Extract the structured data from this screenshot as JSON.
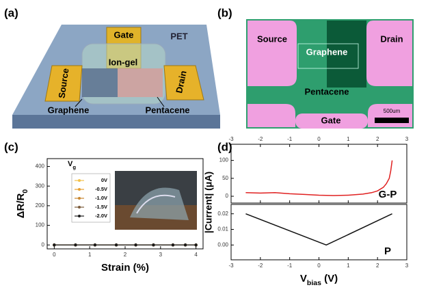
{
  "panel_labels": [
    "(a)",
    "(b)",
    "(c)",
    "(d)"
  ],
  "panel_a": {
    "gate": "Gate",
    "pet": "PET",
    "ion_gel": "Ion-gel",
    "source": "Source",
    "drain": "Drain",
    "graphene": "Graphene",
    "pentacene": "Pentacene"
  },
  "panel_b": {
    "source": "Source",
    "drain": "Drain",
    "graphene": "Graphene",
    "pentacene": "Pentacene",
    "gate": "Gate",
    "scale_bar": "500um"
  },
  "chart_data": [
    {
      "type": "line",
      "ylabel": {
        "main": "ΔR/R",
        "sub": "0"
      },
      "xlabel": "Strain (%)",
      "legend_title": {
        "main": "V",
        "sub": "g"
      },
      "x": [
        0,
        0.6,
        1.15,
        1.75,
        2.3,
        2.8,
        3.35,
        3.7,
        4
      ],
      "series": [
        {
          "name": "0V",
          "color": "#f2c24a",
          "values": [
            0,
            0,
            0,
            0,
            0,
            0,
            0,
            0,
            0
          ]
        },
        {
          "name": "-0.5V",
          "color": "#e8a030",
          "values": [
            0,
            0,
            0,
            0,
            0,
            0,
            0,
            0,
            0
          ]
        },
        {
          "name": "-1.0V",
          "color": "#c8862e",
          "values": [
            0,
            0,
            0,
            0,
            0,
            0,
            0,
            0,
            0
          ]
        },
        {
          "name": "-1.5V",
          "color": "#7a5a3a",
          "values": [
            0,
            0,
            0,
            0,
            0,
            0,
            0,
            0,
            0
          ]
        },
        {
          "name": "-2.0V",
          "color": "#1a1a1a",
          "values": [
            0,
            0,
            0,
            0,
            0,
            0,
            0,
            0,
            0
          ]
        }
      ],
      "xlim": [
        -0.2,
        4.2
      ],
      "xticks": [
        0,
        1,
        2,
        3,
        4
      ],
      "ylim": [
        -20,
        440
      ],
      "yticks": [
        0,
        100,
        200,
        300,
        400
      ]
    },
    {
      "type": "line",
      "ylabel": "|Current| (μA)",
      "annotation": "G-P",
      "x": [
        -2.5,
        -2,
        -1.5,
        -1,
        -0.5,
        0,
        0.5,
        1,
        1.5,
        1.8,
        2,
        2.2,
        2.3,
        2.4,
        2.45,
        2.5
      ],
      "series": [
        {
          "color": "#e02020",
          "values": [
            10,
            9,
            10,
            7,
            5,
            3,
            2,
            3,
            6,
            10,
            15,
            25,
            35,
            50,
            70,
            100
          ]
        }
      ],
      "xlim": [
        -3,
        3
      ],
      "xticks": [
        -3,
        -2,
        -1,
        0,
        1,
        2,
        3
      ],
      "ylim": [
        -19,
        145
      ],
      "yticks": [
        0,
        50,
        100
      ]
    },
    {
      "type": "line",
      "annotation": "P",
      "xlabel": {
        "main": "V",
        "sub": "bias",
        "unit": " (V)"
      },
      "x": [
        -2.5,
        0.25,
        2.5
      ],
      "series": [
        {
          "color": "#111111",
          "values": [
            0.02,
            0,
            0.02
          ]
        }
      ],
      "xlim": [
        -3,
        3
      ],
      "xticks": [
        -3,
        -2,
        -1,
        0,
        1,
        2,
        3
      ],
      "ylim": [
        -0.0095,
        0.026
      ],
      "yticks": [
        {
          "value": 0,
          "label": "0.00"
        },
        {
          "value": 0.01,
          "label": "0.01"
        },
        {
          "value": 0.02,
          "label": "0.02"
        }
      ]
    }
  ]
}
